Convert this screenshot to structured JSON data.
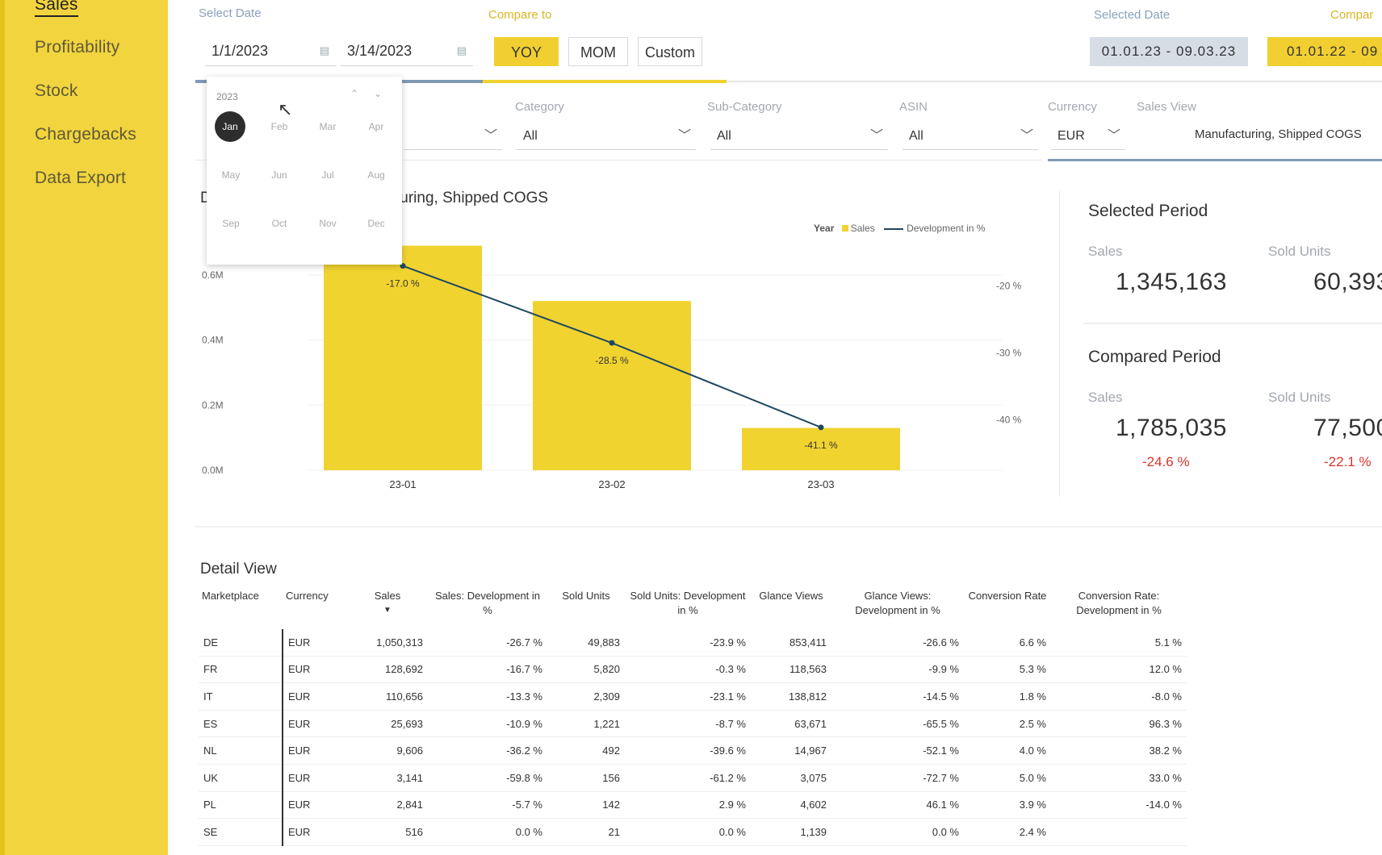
{
  "sidebar": {
    "items": [
      {
        "label": "Sales",
        "active": true
      },
      {
        "label": "Profitability"
      },
      {
        "label": "Stock"
      },
      {
        "label": "Chargebacks"
      },
      {
        "label": "Data Export"
      }
    ]
  },
  "header": {
    "select_date_label": "Select Date",
    "start_date": "1/1/2023",
    "end_date": "3/14/2023",
    "compare_to_label": "Compare to",
    "compare_buttons": [
      "YOY",
      "MOM",
      "Custom"
    ],
    "selected_date_label": "Selected Date",
    "selected_range": "01.01.23 - 09.03.23",
    "compared_label": "Compar",
    "compared_range": "01.01.22 - 09"
  },
  "calendar": {
    "year": "2023",
    "months": [
      "Jan",
      "Feb",
      "Mar",
      "Apr",
      "May",
      "Jun",
      "Jul",
      "Aug",
      "Sep",
      "Oct",
      "Nov",
      "Dec"
    ],
    "selected": "Jan"
  },
  "filters": {
    "category_label": "Category",
    "category_value": "All",
    "subcategory_label": "Sub-Category",
    "subcategory_value": "All",
    "asin_label": "ASIN",
    "asin_value": "All",
    "currency_label": "Currency",
    "currency_value": "EUR",
    "sales_view_label": "Sales View",
    "sales_view_value": "Manufacturing, Shipped COGS"
  },
  "chart_title_prefix": "D",
  "chart_data": {
    "type": "bar",
    "title": "turing, Shipped COGS",
    "legend_label": "Year",
    "categories": [
      "23-01",
      "23-02",
      "23-03"
    ],
    "series": [
      {
        "name": "Sales",
        "values": [
          0.69,
          0.52,
          0.13
        ],
        "unit": "M"
      },
      {
        "name": "Development in %",
        "type": "line",
        "values": [
          -17.0,
          -28.5,
          -41.1
        ]
      }
    ],
    "bar_labels": [
      "-17.0 %",
      "-28.5 %",
      "-41.1 %"
    ],
    "y_ticks": [
      "0.0M",
      "0.2M",
      "0.4M",
      "0.6M"
    ],
    "y2_ticks": [
      "-20 %",
      "-30 %",
      "-40 %"
    ],
    "ylim": [
      0,
      0.7
    ],
    "y2lim": [
      -47.5,
      -13.5
    ],
    "colors": {
      "bar": "#f1d330",
      "line": "#1e4860"
    }
  },
  "kpi": {
    "selected_title": "Selected Period",
    "compared_title": "Compared Period",
    "sales_label": "Sales",
    "units_label": "Sold Units",
    "selected_sales": "1,345,163",
    "selected_units": "60,393",
    "compared_sales": "1,785,035",
    "compared_units": "77,500",
    "sales_delta": "-24.6 %",
    "units_delta": "-22.1 %"
  },
  "detail": {
    "title": "Detail View",
    "headers": [
      "Marketplace",
      "Currency",
      "Sales",
      "Sales: Development in %",
      "Sold Units",
      "Sold Units: Development in %",
      "Glance Views",
      "Glance Views: Development in %",
      "Conversion Rate",
      "Conversion Rate: Development in %"
    ],
    "sort_indicator": "▼",
    "rows": [
      [
        "DE",
        "EUR",
        "1,050,313",
        "-26.7 %",
        "49,883",
        "-23.9 %",
        "853,411",
        "-26.6 %",
        "6.6 %",
        "5.1 %"
      ],
      [
        "FR",
        "EUR",
        "128,692",
        "-16.7 %",
        "5,820",
        "-0.3 %",
        "118,563",
        "-9.9 %",
        "5.3 %",
        "12.0 %"
      ],
      [
        "IT",
        "EUR",
        "110,656",
        "-13.3 %",
        "2,309",
        "-23.1 %",
        "138,812",
        "-14.5 %",
        "1.8 %",
        "-8.0 %"
      ],
      [
        "ES",
        "EUR",
        "25,693",
        "-10.9 %",
        "1,221",
        "-8.7 %",
        "63,671",
        "-65.5 %",
        "2.5 %",
        "96.3 %"
      ],
      [
        "NL",
        "EUR",
        "9,606",
        "-36.2 %",
        "492",
        "-39.6 %",
        "14,967",
        "-52.1 %",
        "4.0 %",
        "38.2 %"
      ],
      [
        "UK",
        "EUR",
        "3,141",
        "-59.8 %",
        "156",
        "-61.2 %",
        "3,075",
        "-72.7 %",
        "5.0 %",
        "33.0 %"
      ],
      [
        "PL",
        "EUR",
        "2,841",
        "-5.7 %",
        "142",
        "2.9 %",
        "4,602",
        "46.1 %",
        "3.9 %",
        "-14.0 %"
      ],
      [
        "SE",
        "EUR",
        "516",
        "0.0 %",
        "21",
        "0.0 %",
        "1,139",
        "0.0 %",
        "2.4 %",
        ""
      ]
    ]
  }
}
